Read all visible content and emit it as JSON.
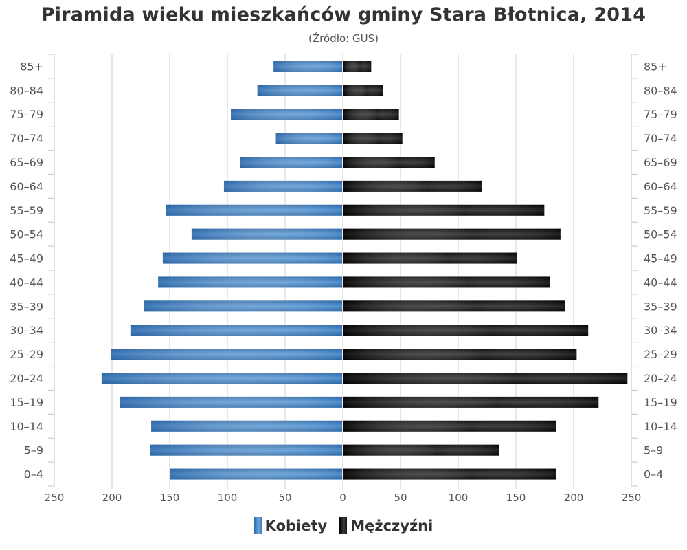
{
  "title": "Piramida wieku mieszkańców gminy Stara Błotnica, 2014",
  "subtitle": "(Źródło: GUS)",
  "legend": [
    {
      "label": "Kobiety",
      "color": "#4a88c8"
    },
    {
      "label": "Mężczyźni",
      "color": "#1a1a1a"
    }
  ],
  "chart_data": {
    "type": "bar",
    "orientation": "horizontal",
    "subtype": "population-pyramid",
    "title": "Piramida wieku mieszkańców gminy Stara Błotnica, 2014",
    "subtitle": "(Źródło: GUS)",
    "categories": [
      "85+",
      "80-84",
      "75-79",
      "70-74",
      "65-69",
      "60-64",
      "55-59",
      "50-54",
      "45-49",
      "40-44",
      "35-39",
      "30-34",
      "25-29",
      "20-24",
      "15-19",
      "10-14",
      "5-9",
      "0-4"
    ],
    "series": [
      {
        "name": "Kobiety",
        "side": "left",
        "color": "#4a88c8",
        "values": [
          60,
          74,
          97,
          58,
          89,
          103,
          153,
          131,
          156,
          160,
          172,
          184,
          201,
          209,
          193,
          166,
          167,
          150
        ]
      },
      {
        "name": "Mężczyźni",
        "side": "right",
        "color": "#1a1a1a",
        "values": [
          24,
          34,
          48,
          51,
          79,
          120,
          174,
          188,
          150,
          179,
          192,
          212,
          202,
          246,
          221,
          184,
          135,
          184
        ]
      }
    ],
    "x_ticks": [
      "250",
      "200",
      "150",
      "100",
      "50",
      "0",
      "50",
      "100",
      "150",
      "200",
      "250"
    ],
    "xlim": [
      -250,
      250
    ],
    "grid": true,
    "legend_position": "bottom"
  }
}
